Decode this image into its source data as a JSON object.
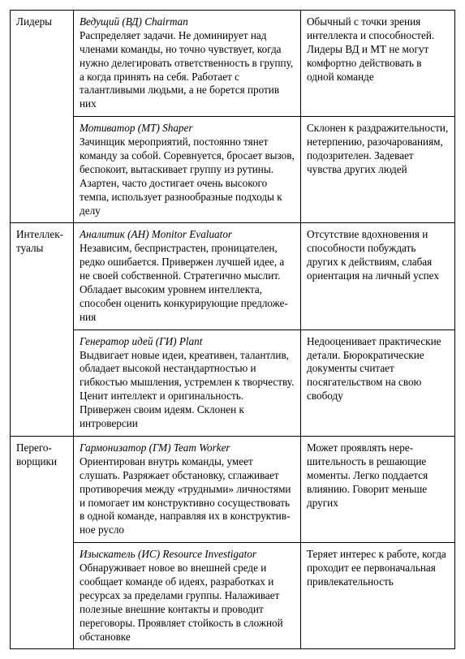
{
  "groups": [
    {
      "category": "Лидеры",
      "roles": [
        {
          "title": "Ведущий (ВД) Chairman",
          "description": "Распределяет задачи. Не доминирует над членами команды, но точно чув­ствует, когда нужно делегировать от­ветственность в группу, а когда при­нять на себя. Работает с талантливы­ми людьми, а не борется против них",
          "weakness": "Обычный с точки зрения интеллекта и способно­стей. Лидеры ВД и МТ не могут комфортно действо­вать в одной команде"
        },
        {
          "title": "Мотиватор (МТ) Shaper",
          "description": "Зачинщик мероприятий, постоянно тянет команду за собой. Соревнуется, бросает вызов, беспокоит, вытаскивает группу из рутины. Азартен, часто до­стигает очень высокого темпа, исполь­зует разнообразные подходы к делу",
          "weakness": "Склонен к раздражитель­ности, нетерпению, разо­чарованиям, подозрите­лен. Задевает чувства дру­гих людей"
        }
      ]
    },
    {
      "category": "Интеллек­туалы",
      "roles": [
        {
          "title": "Аналитик (АН) Monitor Evaluator",
          "description": "Независим, беспристрастен, проница­телен, редко ошибается. Привержен лучшей идее, а не своей собственной. Стратегично мыслит. Обладает высо­ким уровнем интеллекта, способен оценить конкурирующие предложе­ния",
          "weakness": "Отсутствие вдохновения и способности побуждать других к действиям, сла­бая ориентация на личный успех"
        },
        {
          "title": "Генератор идей (ГИ) Plant",
          "description": "Выдвигает новые идеи, креативен, талантлив, обладает высокой нестан­дартностью и гибкостью мышления, устремлен к творчеству. Ценит интел­лект и оригинальность. Привержен своим идеям. Склонен к интроверсии",
          "weakness": "Недооценивает прак­тические детали. Бюрократические доку­менты считает посягатель­ством на свою свободу"
        }
      ]
    },
    {
      "category": "Перего­ворщики",
      "roles": [
        {
          "title": "Гармонизатор (ГМ) Team Worker",
          "description": "Ориентирован внутрь команды, умеет слушать. Разряжает обстановку, сгла­живает противоречия между «трудны­ми» личностями и помогает им кон­структивно сосуществовать в одной команде, направляя их в конструктив­ное русло",
          "weakness": "Может проявлять нере­шительность в решающие моменты. Легко поддается влиянию. Говорит меньше других"
        },
        {
          "title": "Изыскатель (ИС) Resource Investigator",
          "description": "Обнаруживает новое во внешней сре­де и сообщает команде об идеях, раз­работках и ресурсах за пределами группы. Налаживает полезные внеш­ние контакты и проводит переговоры. Проявляет стойкость в сложной об­становке",
          "weakness": "Теряет интерес к работе, когда проходит ее перво­начальная привлекатель­ность"
        }
      ]
    }
  ]
}
